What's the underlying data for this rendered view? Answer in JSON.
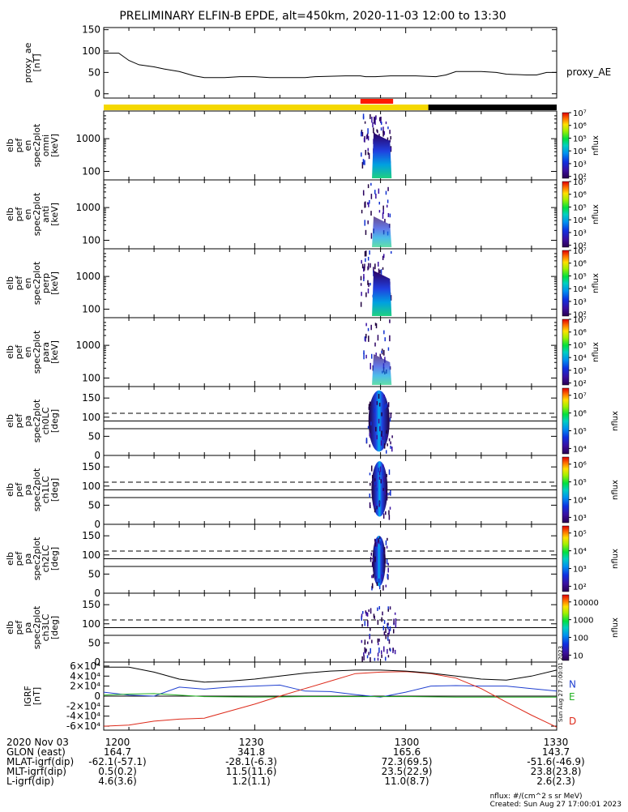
{
  "title": "PRELIMINARY ELFIN-B EPDE, alt=450km, 2020-11-03 12:00 to 13:30",
  "colors": {
    "trace": "#000000",
    "n_component": "#1f3fd0",
    "e_component": "#22b022",
    "d_component": "#dd2a1a",
    "sunlit_bar": "#f5d800",
    "shadow_bar": "#000000",
    "science_bar": "#ff1a00"
  },
  "chart_data": [
    {
      "type": "line",
      "id": "proxy_ae",
      "ylabel": [
        "proxy_ae",
        "[nT]"
      ],
      "legend": "proxy_AE",
      "ylim": [
        -10,
        155
      ],
      "yticks": [
        0,
        50,
        100,
        150
      ],
      "x": [
        0,
        3,
        5,
        7,
        10,
        12,
        15,
        18,
        20,
        24,
        27,
        30,
        33,
        36,
        40,
        42,
        48,
        51,
        52,
        54,
        57,
        62,
        66,
        68,
        70,
        75,
        78,
        80,
        84,
        86,
        88,
        90
      ],
      "values": [
        95,
        95,
        78,
        68,
        63,
        58,
        52,
        42,
        38,
        38,
        40,
        40,
        38,
        38,
        38,
        40,
        42,
        42,
        40,
        40,
        42,
        42,
        40,
        44,
        52,
        52,
        50,
        46,
        44,
        44,
        50,
        50
      ]
    },
    {
      "type": "heatmap",
      "id": "en_spec_omni",
      "ylabel": [
        "elb",
        "pef",
        "en",
        "spec2plot",
        "omni",
        "[keV]"
      ],
      "yscale": "log",
      "yticks": [
        100,
        1000
      ],
      "colorbar": {
        "label": "nflux",
        "ticks": [
          "10²",
          "10³",
          "10⁴",
          "10⁵",
          "10⁶",
          "10⁷"
        ]
      }
    },
    {
      "type": "heatmap",
      "id": "en_spec_anti",
      "ylabel": [
        "elb",
        "pef",
        "en",
        "spec2plot",
        "anti",
        "[keV]"
      ],
      "yscale": "log",
      "yticks": [
        100,
        1000
      ],
      "colorbar": {
        "label": "nflux",
        "ticks": [
          "10²",
          "10³",
          "10⁴",
          "10⁵",
          "10⁶",
          "10⁷"
        ]
      }
    },
    {
      "type": "heatmap",
      "id": "en_spec_perp",
      "ylabel": [
        "elb",
        "pef",
        "en",
        "spec2plot",
        "perp",
        "[keV]"
      ],
      "yscale": "log",
      "yticks": [
        100,
        1000
      ],
      "colorbar": {
        "label": "nflux",
        "ticks": [
          "10²",
          "10³",
          "10⁴",
          "10⁵",
          "10⁶",
          "10⁷"
        ]
      }
    },
    {
      "type": "heatmap",
      "id": "en_spec_para",
      "ylabel": [
        "elb",
        "pef",
        "en",
        "spec2plot",
        "para",
        "[keV]"
      ],
      "yscale": "log",
      "yticks": [
        100,
        1000
      ],
      "colorbar": {
        "label": "nflux",
        "ticks": [
          "10²",
          "10³",
          "10⁴",
          "10⁵",
          "10⁶",
          "10⁷"
        ]
      }
    },
    {
      "type": "heatmap",
      "id": "pa_ch0LC",
      "ylabel": [
        "elb",
        "pef",
        "pa",
        "spec2plot",
        "ch0LC",
        "[deg]"
      ],
      "ylim": [
        0,
        180
      ],
      "yticks": [
        0,
        50,
        100,
        150
      ],
      "colorbar": {
        "label": "nflux",
        "ticks": [
          "10⁴",
          "10⁵",
          "10⁶",
          "10⁷"
        ]
      }
    },
    {
      "type": "heatmap",
      "id": "pa_ch1LC",
      "ylabel": [
        "elb",
        "pef",
        "pa",
        "spec2plot",
        "ch1LC",
        "[deg]"
      ],
      "ylim": [
        0,
        180
      ],
      "yticks": [
        0,
        50,
        100,
        150
      ],
      "colorbar": {
        "label": "nflux",
        "ticks": [
          "10³",
          "10⁴",
          "10⁵",
          "10⁶"
        ]
      }
    },
    {
      "type": "heatmap",
      "id": "pa_ch2LC",
      "ylabel": [
        "elb",
        "pef",
        "pa",
        "spec2plot",
        "ch2LC",
        "[deg]"
      ],
      "ylim": [
        0,
        180
      ],
      "yticks": [
        0,
        50,
        100,
        150
      ],
      "colorbar": {
        "label": "nflux",
        "ticks": [
          "10²",
          "10³",
          "10⁴",
          "10⁵"
        ]
      }
    },
    {
      "type": "heatmap",
      "id": "pa_ch3LC",
      "ylabel": [
        "elb",
        "pef",
        "pa",
        "spec2plot",
        "ch3LC",
        "[deg]"
      ],
      "ylim": [
        0,
        180
      ],
      "yticks": [
        0,
        50,
        100,
        150
      ],
      "colorbar": {
        "label": "nflux",
        "ticks": [
          "10",
          "100",
          "1000",
          "10000"
        ]
      }
    },
    {
      "type": "line",
      "id": "igrf",
      "ylabel": [
        "IGRF",
        "[nT]"
      ],
      "ylim": [
        -68000,
        68000
      ],
      "yticks": [
        "-6×10⁴",
        "-4×10⁴",
        "-2×10⁴",
        "0",
        "2×10⁴",
        "4×10⁴",
        "6×10⁴"
      ],
      "ytick_values": [
        -60000,
        -40000,
        -20000,
        0,
        20000,
        40000,
        60000
      ],
      "series": [
        {
          "name": "N",
          "x": [
            0,
            5,
            10,
            15,
            20,
            25,
            30,
            35,
            40,
            45,
            50,
            55,
            60,
            65,
            70,
            75,
            80,
            85,
            90
          ],
          "values": [
            8000,
            2000,
            0,
            18000,
            14000,
            18000,
            20000,
            22000,
            10000,
            9000,
            3000,
            -2000,
            8000,
            20000,
            21000,
            20000,
            20000,
            15000,
            10000
          ]
        },
        {
          "name": "E",
          "x": [
            0,
            5,
            10,
            20,
            30,
            40,
            50,
            60,
            70,
            80,
            90
          ],
          "values": [
            2000,
            4000,
            5000,
            -1000,
            -2000,
            -1000,
            -1000,
            -1000,
            -2000,
            -2000,
            -2000
          ]
        },
        {
          "name": "D",
          "x": [
            0,
            5,
            10,
            15,
            20,
            25,
            30,
            35,
            40,
            45,
            50,
            55,
            60,
            65,
            70,
            75,
            80,
            85,
            90
          ],
          "values": [
            -60000,
            -58000,
            -50000,
            -46000,
            -44000,
            -30000,
            -16000,
            0,
            15000,
            30000,
            45000,
            48000,
            49000,
            45000,
            36000,
            15000,
            -12000,
            -38000,
            -62000
          ]
        },
        {
          "x": [
            0,
            5,
            10,
            15,
            20,
            25,
            30,
            35,
            40,
            45,
            50,
            55,
            60,
            65,
            70,
            75,
            80,
            85,
            90
          ],
          "values": [
            58000,
            58000,
            48000,
            34000,
            28000,
            30000,
            34000,
            40000,
            46000,
            50000,
            52000,
            52000,
            50000,
            46000,
            40000,
            34000,
            32000,
            40000,
            52000
          ]
        }
      ]
    }
  ],
  "table": {
    "row_labels": [
      "2020 Nov 03",
      "GLON (east)",
      "MLAT-igrf(dip)",
      "MLT-igrf(dip)",
      "L-igrf(dip)"
    ],
    "columns": [
      {
        "time": "1200",
        "glon": "164.7",
        "mlat": "-62.1(-57.1)",
        "mlt": "0.5(0.2)",
        "l": "4.6(3.6)"
      },
      {
        "time": "1230",
        "glon": "341.8",
        "mlat": "-28.1(-6.3)",
        "mlt": "11.5(11.6)",
        "l": "1.2(1.1)"
      },
      {
        "time": "1300",
        "glon": "165.6",
        "mlat": "72.3(69.5)",
        "mlt": "23.5(22.9)",
        "l": "11.0(8.7)"
      },
      {
        "time": "1330",
        "glon": "143.7",
        "mlat": "-51.6(-46.9)",
        "mlt": "23.8(23.8)",
        "l": "2.6(2.3)"
      }
    ]
  },
  "footer": {
    "units": "nflux: #/(cm^2 s sr MeV)",
    "created": "Created: Sun Aug 27 17:00:01 2023",
    "vertical_stamp": "Sun Aug 27 17:00:01 2023"
  }
}
